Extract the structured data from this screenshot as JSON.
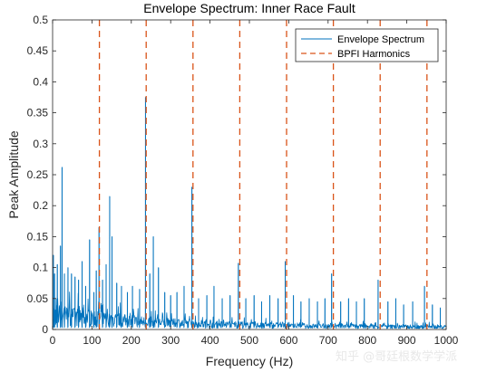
{
  "chart_data": {
    "type": "line",
    "title": "Envelope Spectrum: Inner Race Fault",
    "xlabel": "Frequency (Hz)",
    "ylabel": "Peak Amplitude",
    "xlim": [
      0,
      1000
    ],
    "ylim": [
      0,
      0.5
    ],
    "xticks": [
      0,
      100,
      200,
      300,
      400,
      500,
      600,
      700,
      800,
      900,
      1000
    ],
    "yticks": [
      0,
      0.05,
      0.1,
      0.15,
      0.2,
      0.25,
      0.3,
      0.35,
      0.4,
      0.45,
      0.5
    ],
    "ytick_labels": [
      "0",
      "0.05",
      "0.1",
      "0.15",
      "0.2",
      "0.25",
      "0.3",
      "0.35",
      "0.4",
      "0.45",
      "0.5"
    ],
    "grid": false,
    "legend_position": "top-right",
    "legend": [
      "Envelope Spectrum",
      "BPFI Harmonics"
    ],
    "colors": {
      "spectrum": "#0072BD",
      "harmonics": "#D95319",
      "axis": "#262626"
    },
    "series": [
      {
        "name": "Envelope Spectrum",
        "style": "solid",
        "peaks": [
          {
            "x": 2,
            "y": 0.12
          },
          {
            "x": 5,
            "y": 0.09
          },
          {
            "x": 12,
            "y": 0.105
          },
          {
            "x": 20,
            "y": 0.135
          },
          {
            "x": 24,
            "y": 0.262
          },
          {
            "x": 30,
            "y": 0.09
          },
          {
            "x": 39,
            "y": 0.1
          },
          {
            "x": 48,
            "y": 0.09
          },
          {
            "x": 57,
            "y": 0.085
          },
          {
            "x": 66,
            "y": 0.08
          },
          {
            "x": 75,
            "y": 0.11
          },
          {
            "x": 84,
            "y": 0.07
          },
          {
            "x": 94,
            "y": 0.145
          },
          {
            "x": 105,
            "y": 0.06
          },
          {
            "x": 111,
            "y": 0.095
          },
          {
            "x": 118,
            "y": 0.165
          },
          {
            "x": 127,
            "y": 0.08
          },
          {
            "x": 136,
            "y": 0.105
          },
          {
            "x": 145,
            "y": 0.215
          },
          {
            "x": 151,
            "y": 0.15
          },
          {
            "x": 163,
            "y": 0.075
          },
          {
            "x": 175,
            "y": 0.07
          },
          {
            "x": 190,
            "y": 0.06
          },
          {
            "x": 203,
            "y": 0.07
          },
          {
            "x": 221,
            "y": 0.065
          },
          {
            "x": 236,
            "y": 0.375
          },
          {
            "x": 247,
            "y": 0.09
          },
          {
            "x": 256,
            "y": 0.15
          },
          {
            "x": 269,
            "y": 0.1
          },
          {
            "x": 285,
            "y": 0.06
          },
          {
            "x": 300,
            "y": 0.055
          },
          {
            "x": 316,
            "y": 0.06
          },
          {
            "x": 334,
            "y": 0.07
          },
          {
            "x": 354,
            "y": 0.23
          },
          {
            "x": 371,
            "y": 0.05
          },
          {
            "x": 392,
            "y": 0.055
          },
          {
            "x": 410,
            "y": 0.07
          },
          {
            "x": 431,
            "y": 0.05
          },
          {
            "x": 451,
            "y": 0.055
          },
          {
            "x": 472,
            "y": 0.107
          },
          {
            "x": 491,
            "y": 0.05
          },
          {
            "x": 512,
            "y": 0.055
          },
          {
            "x": 531,
            "y": 0.045
          },
          {
            "x": 552,
            "y": 0.055
          },
          {
            "x": 573,
            "y": 0.05
          },
          {
            "x": 591,
            "y": 0.11
          },
          {
            "x": 612,
            "y": 0.055
          },
          {
            "x": 631,
            "y": 0.045
          },
          {
            "x": 652,
            "y": 0.05
          },
          {
            "x": 673,
            "y": 0.045
          },
          {
            "x": 692,
            "y": 0.05
          },
          {
            "x": 709,
            "y": 0.09
          },
          {
            "x": 732,
            "y": 0.045
          },
          {
            "x": 752,
            "y": 0.05
          },
          {
            "x": 772,
            "y": 0.045
          },
          {
            "x": 792,
            "y": 0.05
          },
          {
            "x": 827,
            "y": 0.08
          },
          {
            "x": 852,
            "y": 0.045
          },
          {
            "x": 872,
            "y": 0.05
          },
          {
            "x": 892,
            "y": 0.04
          },
          {
            "x": 915,
            "y": 0.045
          },
          {
            "x": 945,
            "y": 0.07
          },
          {
            "x": 965,
            "y": 0.04
          },
          {
            "x": 985,
            "y": 0.035
          }
        ]
      },
      {
        "name": "BPFI Harmonics",
        "style": "dashed",
        "x": [
          118.9,
          237.8,
          356.7,
          475.6,
          594.5,
          713.4,
          832.3,
          951.2
        ]
      }
    ]
  },
  "watermark": "知乎 @哥廷根数学学派"
}
